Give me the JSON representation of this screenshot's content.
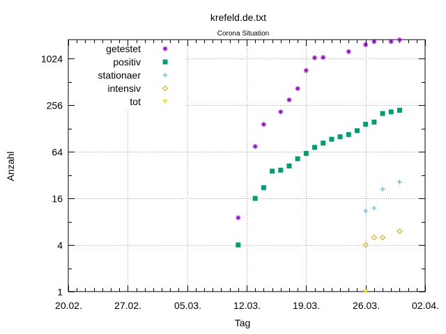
{
  "chart_data": {
    "type": "scatter",
    "title": "krefeld.de.txt",
    "subtitle": "Corona Situation",
    "xlabel": "Tag",
    "ylabel": "Anzahl",
    "x_range": [
      "2020-02-20",
      "2020-04-02"
    ],
    "x_ticks": [
      {
        "date": "2020-02-20",
        "label": "20.02."
      },
      {
        "date": "2020-02-27",
        "label": "27.02."
      },
      {
        "date": "2020-03-05",
        "label": "05.03."
      },
      {
        "date": "2020-03-12",
        "label": "12.03."
      },
      {
        "date": "2020-03-19",
        "label": "19.03."
      },
      {
        "date": "2020-03-26",
        "label": "26.03."
      },
      {
        "date": "2020-04-02",
        "label": "02.04."
      }
    ],
    "y_scale": "log2",
    "y_range": [
      1,
      1800
    ],
    "y_ticks": [
      {
        "value": 1,
        "label": "1"
      },
      {
        "value": 4,
        "label": "4"
      },
      {
        "value": 16,
        "label": "16"
      },
      {
        "value": 64,
        "label": "64"
      },
      {
        "value": 256,
        "label": "256"
      },
      {
        "value": 1024,
        "label": "1024"
      }
    ],
    "grid": true,
    "legend_position": "top-left",
    "series": [
      {
        "name": "getestet",
        "marker": "asterisk",
        "color": "#9400d3",
        "points": [
          {
            "x": "2020-03-11",
            "y": 9
          },
          {
            "x": "2020-03-13",
            "y": 75
          },
          {
            "x": "2020-03-14",
            "y": 145
          },
          {
            "x": "2020-03-16",
            "y": 210
          },
          {
            "x": "2020-03-17",
            "y": 300
          },
          {
            "x": "2020-03-18",
            "y": 420
          },
          {
            "x": "2020-03-19",
            "y": 720
          },
          {
            "x": "2020-03-20",
            "y": 1050
          },
          {
            "x": "2020-03-21",
            "y": 1060
          },
          {
            "x": "2020-03-24",
            "y": 1260
          },
          {
            "x": "2020-03-26",
            "y": 1550
          },
          {
            "x": "2020-03-27",
            "y": 1700
          },
          {
            "x": "2020-03-29",
            "y": 1700
          },
          {
            "x": "2020-03-30",
            "y": 1790
          }
        ]
      },
      {
        "name": "positiv",
        "marker": "square",
        "color": "#009e73",
        "points": [
          {
            "x": "2020-03-11",
            "y": 4
          },
          {
            "x": "2020-03-13",
            "y": 16
          },
          {
            "x": "2020-03-14",
            "y": 22
          },
          {
            "x": "2020-03-15",
            "y": 36
          },
          {
            "x": "2020-03-16",
            "y": 37
          },
          {
            "x": "2020-03-17",
            "y": 42
          },
          {
            "x": "2020-03-18",
            "y": 52
          },
          {
            "x": "2020-03-19",
            "y": 61
          },
          {
            "x": "2020-03-20",
            "y": 73
          },
          {
            "x": "2020-03-21",
            "y": 83
          },
          {
            "x": "2020-03-22",
            "y": 93
          },
          {
            "x": "2020-03-23",
            "y": 100
          },
          {
            "x": "2020-03-24",
            "y": 107
          },
          {
            "x": "2020-03-25",
            "y": 120
          },
          {
            "x": "2020-03-26",
            "y": 145
          },
          {
            "x": "2020-03-27",
            "y": 155
          },
          {
            "x": "2020-03-28",
            "y": 200
          },
          {
            "x": "2020-03-29",
            "y": 210
          },
          {
            "x": "2020-03-30",
            "y": 220
          }
        ]
      },
      {
        "name": "stationaer",
        "marker": "plus",
        "color": "#56b4e9",
        "points": [
          {
            "x": "2020-03-26",
            "y": 11
          },
          {
            "x": "2020-03-27",
            "y": 12
          },
          {
            "x": "2020-03-28",
            "y": 21
          },
          {
            "x": "2020-03-30",
            "y": 26
          }
        ]
      },
      {
        "name": "intensiv",
        "marker": "diamond",
        "color": "#e69f00",
        "points": [
          {
            "x": "2020-03-26",
            "y": 4
          },
          {
            "x": "2020-03-27",
            "y": 5
          },
          {
            "x": "2020-03-28",
            "y": 5
          },
          {
            "x": "2020-03-30",
            "y": 6
          }
        ]
      },
      {
        "name": "tot",
        "marker": "triangle-down",
        "color": "#f0e442",
        "points": [
          {
            "x": "2020-03-26",
            "y": 1
          }
        ]
      }
    ]
  }
}
